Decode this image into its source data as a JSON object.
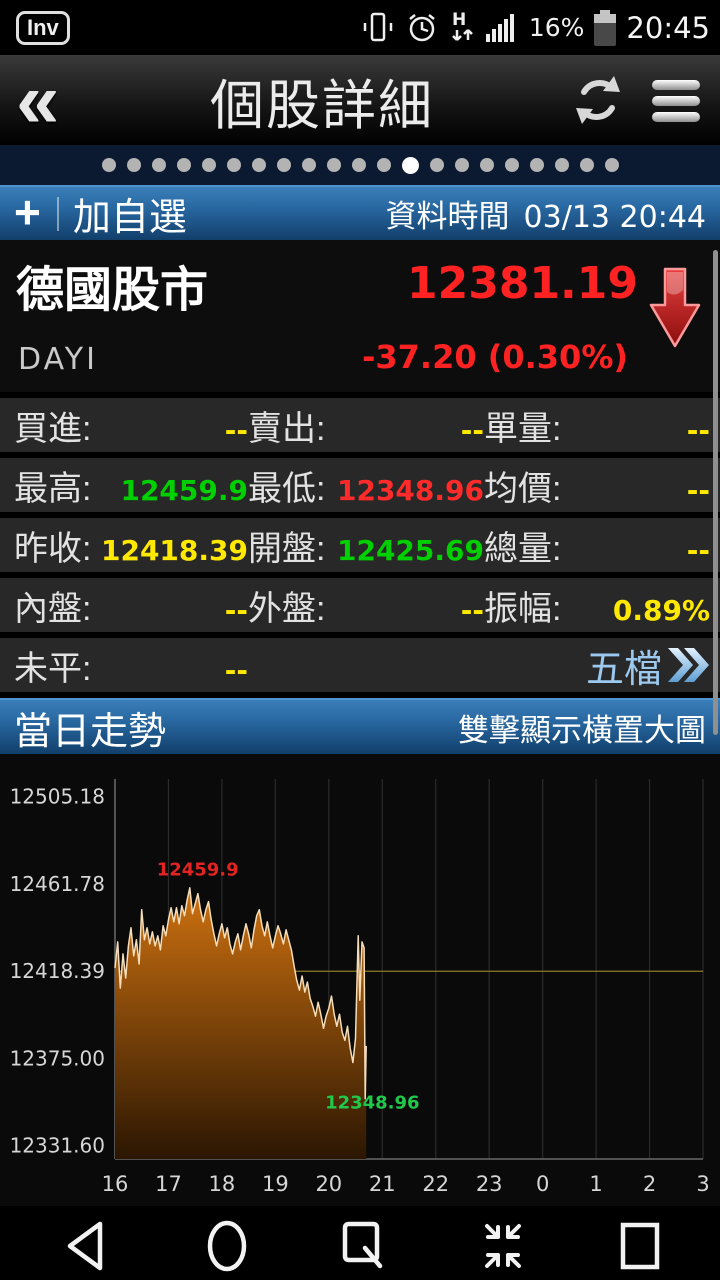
{
  "status_bar": {
    "app_badge": "Inv",
    "battery_percent": "16%",
    "time": "20:45"
  },
  "header": {
    "title": "個股詳細"
  },
  "pager": {
    "count": 21,
    "active_index": 12
  },
  "subbar": {
    "add_watchlist": "加自選",
    "data_time_label": "資料時間",
    "data_time_value": "03/13 20:44"
  },
  "quote": {
    "name": "德國股市",
    "code": "DAYI",
    "price": "12381.19",
    "change": "-37.20 (0.30%)",
    "direction": "down"
  },
  "rows": [
    {
      "cells": [
        {
          "label": "買進:",
          "value": "--",
          "color": "yellow"
        },
        {
          "label": "賣出:",
          "value": "--",
          "color": "yellow"
        },
        {
          "label": "單量:",
          "value": "--",
          "color": "yellow"
        }
      ]
    },
    {
      "cells": [
        {
          "label": "最高:",
          "value": "12459.9",
          "color": "green"
        },
        {
          "label": "最低:",
          "value": "12348.96",
          "color": "red"
        },
        {
          "label": "均價:",
          "value": "--",
          "color": "yellow"
        }
      ]
    },
    {
      "cells": [
        {
          "label": "昨收:",
          "value": "12418.39",
          "color": "yellow"
        },
        {
          "label": "開盤:",
          "value": "12425.69",
          "color": "green"
        },
        {
          "label": "總量:",
          "value": "--",
          "color": "yellow"
        }
      ]
    },
    {
      "cells": [
        {
          "label": "內盤:",
          "value": "--",
          "color": "yellow"
        },
        {
          "label": "外盤:",
          "value": "--",
          "color": "yellow"
        },
        {
          "label": "振幅:",
          "value": "0.89%",
          "color": "yellow"
        }
      ]
    },
    {
      "cells": [
        {
          "label": "未平:",
          "value": "--",
          "color": "yellow"
        }
      ]
    }
  ],
  "footer": {
    "five_tier_label": "五檔"
  },
  "section_bar": {
    "left": "當日走勢",
    "right": "雙擊顯示橫置大圖"
  },
  "colors": {
    "up_green": "#00cf00",
    "down_red": "#ff2222",
    "value_yellow": "#ffe900",
    "link_blue": "#9cc9ef",
    "bar_blue_top": "#3b7fb8",
    "bar_blue_bottom": "#113f6b",
    "chart_line": "#f4ddb8",
    "chart_fill_top": "#cf7210",
    "chart_fill_bottom": "#2b1602",
    "prev_close_line": "#8f7c28",
    "tick_text": "#d6d6d6"
  },
  "chart_data": {
    "type": "area",
    "title": "當日走勢",
    "x_hours_range": [
      16,
      27
    ],
    "x_tick_labels": [
      "16",
      "17",
      "18",
      "19",
      "20",
      "21",
      "22",
      "23",
      "0",
      "1",
      "2",
      "3"
    ],
    "y_ticks": [
      12505.18,
      12461.78,
      12418.39,
      12375.0,
      12331.6
    ],
    "y_tick_labels": [
      "12505.18",
      "12461.78",
      "12418.39",
      "12375.00",
      "12331.60"
    ],
    "ylim": [
      12325,
      12514
    ],
    "grid": "vertical-hourly",
    "prev_close_line": 12418.39,
    "high": 12459.9,
    "low": 12348.96,
    "last": 12381.19,
    "annotations": [
      {
        "text": "12459.9",
        "color": "#e32222",
        "x": 16.78,
        "y": 12466
      },
      {
        "text": "12348.96",
        "color": "#21c94a",
        "x": 19.93,
        "y": 12350
      }
    ],
    "series": [
      {
        "name": "price",
        "x": [
          16.0,
          16.05,
          16.1,
          16.15,
          16.2,
          16.25,
          16.3,
          16.35,
          16.4,
          16.45,
          16.5,
          16.55,
          16.6,
          16.65,
          16.7,
          16.75,
          16.8,
          16.85,
          16.9,
          16.95,
          17.0,
          17.05,
          17.1,
          17.15,
          17.2,
          17.25,
          17.3,
          17.35,
          17.4,
          17.45,
          17.5,
          17.55,
          17.6,
          17.65,
          17.7,
          17.75,
          17.8,
          17.85,
          17.9,
          17.95,
          18.0,
          18.05,
          18.1,
          18.15,
          18.2,
          18.25,
          18.3,
          18.35,
          18.4,
          18.45,
          18.5,
          18.55,
          18.6,
          18.65,
          18.7,
          18.75,
          18.8,
          18.85,
          18.9,
          18.95,
          19.0,
          19.05,
          19.1,
          19.15,
          19.2,
          19.25,
          19.3,
          19.35,
          19.4,
          19.45,
          19.5,
          19.55,
          19.6,
          19.65,
          19.7,
          19.75,
          19.8,
          19.85,
          19.9,
          19.95,
          20.0,
          20.05,
          20.1,
          20.15,
          20.2,
          20.25,
          20.3,
          20.35,
          20.4,
          20.45,
          20.5,
          20.55,
          20.58,
          20.62,
          20.66,
          20.68,
          20.7
        ],
        "y": [
          12420,
          12433,
          12410,
          12427,
          12415,
          12431,
          12440,
          12426,
          12434,
          12422,
          12449,
          12434,
          12440,
          12432,
          12438,
          12431,
          12436,
          12429,
          12441,
          12436,
          12444,
          12450,
          12443,
          12450,
          12442,
          12451,
          12446,
          12454,
          12459.9,
          12447,
          12452,
          12457,
          12449,
          12443,
          12449,
          12453,
          12444,
          12437,
          12431,
          12437,
          12442,
          12435,
          12440,
          12432,
          12427,
          12433,
          12437,
          12429,
          12436,
          12442,
          12437,
          12430,
          12439,
          12446,
          12449,
          12441,
          12436,
          12443,
          12436,
          12430,
          12436,
          12441,
          12437,
          12432,
          12439,
          12434,
          12429,
          12421,
          12414,
          12409,
          12416,
          12408,
          12413,
          12405,
          12401,
          12396,
          12403,
          12397,
          12390,
          12396,
          12400,
          12406,
          12397,
          12391,
          12397,
          12388,
          12384,
          12391,
          12380,
          12373,
          12385,
          12436,
          12404,
          12433,
          12430,
          12355,
          12381.19
        ]
      }
    ]
  }
}
